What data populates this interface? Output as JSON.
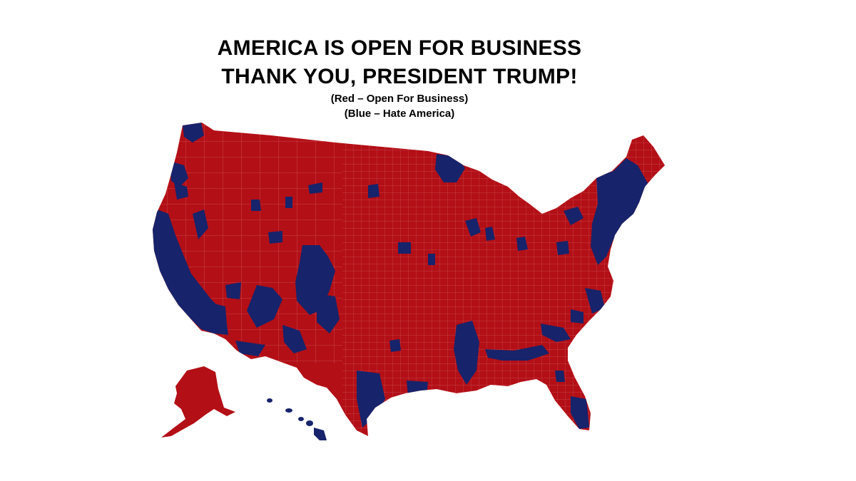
{
  "headline": {
    "line1": "AMERICA IS OPEN FOR BUSINESS",
    "line2": "THANK YOU, PRESIDENT TRUMP!"
  },
  "legend": {
    "red": "(Red – Open For Business)",
    "blue": "(Blue – Hate America)"
  },
  "colors": {
    "red": "#b30f16",
    "blue": "#17236b",
    "border": "#d9868a",
    "background": "#ffffff"
  }
}
